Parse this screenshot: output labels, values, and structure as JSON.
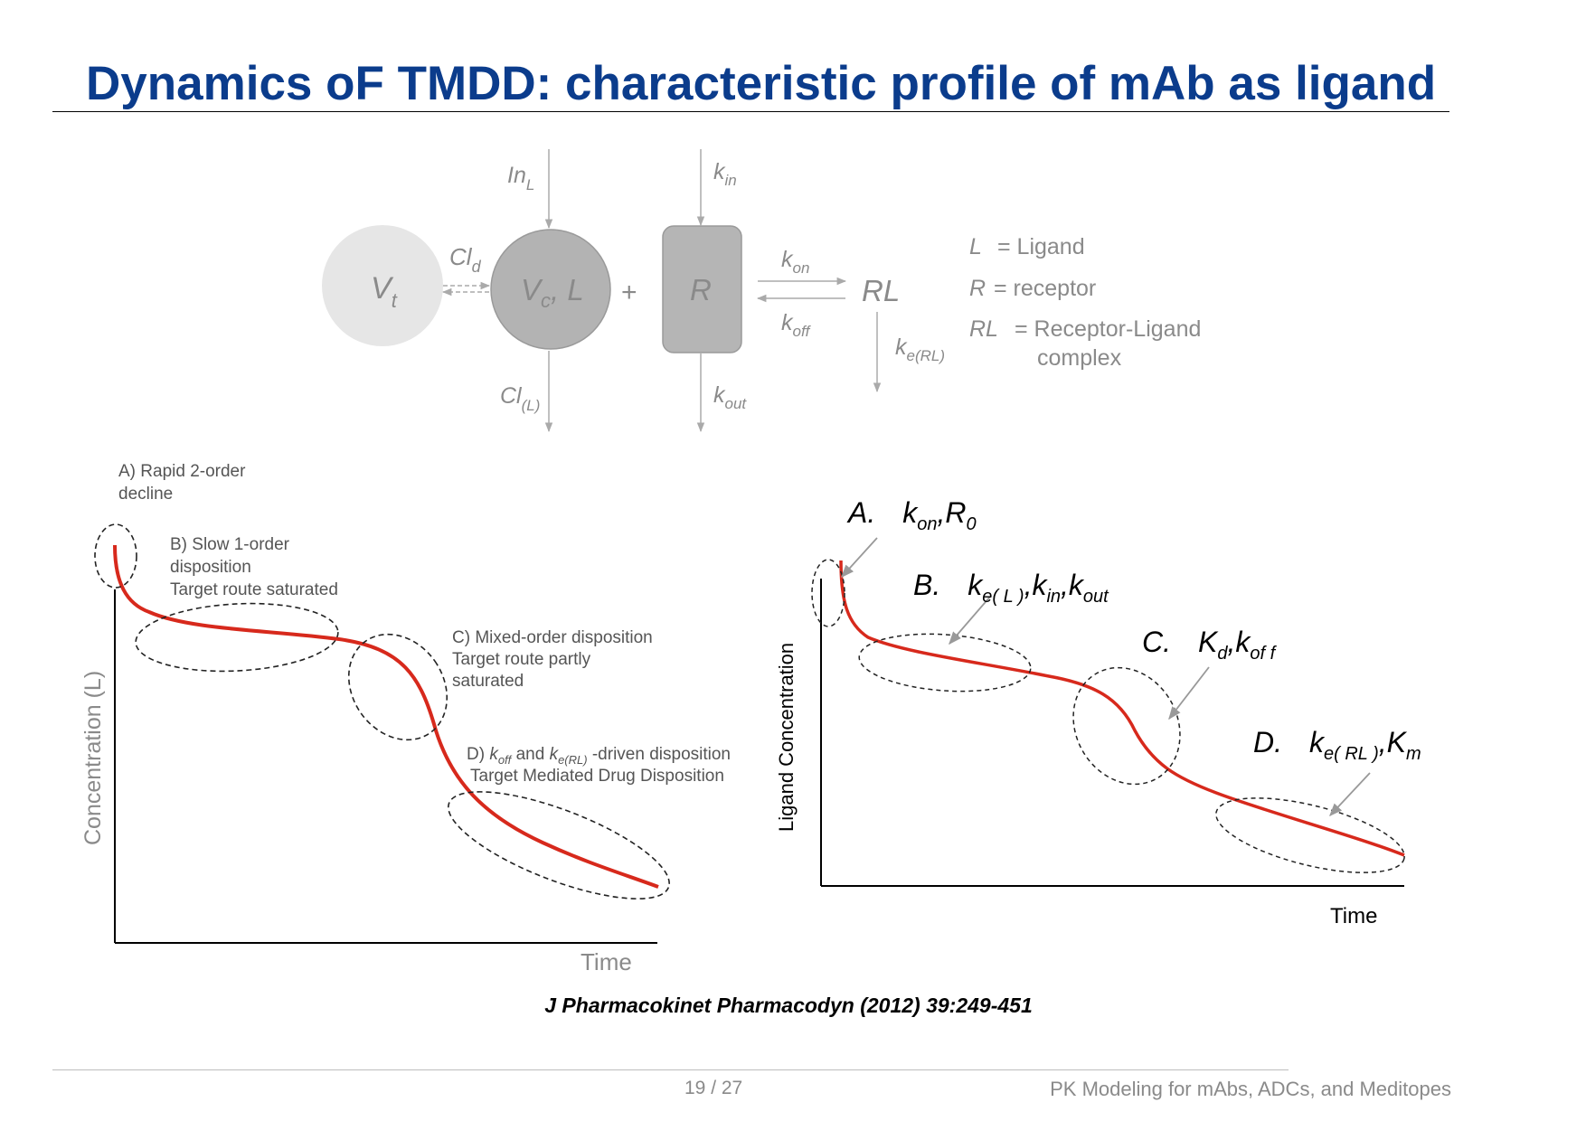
{
  "slide": {
    "title": "Dynamics oF TMDD: characteristic profile of mAb as ligand",
    "citation": "J Pharmacokinet Pharmacodyn (2012) 39:249-451",
    "footer_page": "19 / 27",
    "footer_title": "PK Modeling for mAbs, ADCs, and Meditopes"
  },
  "scheme": {
    "vt_main": "V",
    "vt_sub": "t",
    "vc_main": "V",
    "vc_sub": "c",
    "vc_suffix": ", L",
    "plus": "+",
    "r_label": "R",
    "rl_label": "RL",
    "inl_main": "In",
    "inl_sub": "L",
    "kin_main": "k",
    "kin_sub": "in",
    "cld_main": "Cl",
    "cld_sub": "d",
    "kon_main": "k",
    "kon_sub": "on",
    "koff_main": "k",
    "koff_sub": "off",
    "cll_main": "Cl",
    "cll_sub": "(L)",
    "kout_main": "k",
    "kout_sub": "out",
    "kerl_main": "k",
    "kerl_sub": "e(RL)",
    "legend": {
      "l_sym": "L",
      "l_text": "= Ligand",
      "r_sym": "R",
      "r_text": "= receptor",
      "rl_sym": "RL",
      "rl_text": "= Receptor-Ligand",
      "rl_text2": "complex"
    }
  },
  "left_plot": {
    "ylabel": "Concentration (L)",
    "xlabel": "Time",
    "a_line1": "A) Rapid 2-order",
    "a_line2": "decline",
    "b_line1": "B) Slow 1-order",
    "b_line2": "disposition",
    "b_line3": "Target route saturated",
    "c_line1": "C) Mixed-order disposition",
    "c_line2": "Target route partly",
    "c_line3": "saturated",
    "d_prefix": "D) ",
    "d_koff_main": "k",
    "d_koff_sub": "off",
    "d_and": " and ",
    "d_kerl_main": "k",
    "d_kerl_sub": "e(RL)",
    "d_suffix": " -driven disposition",
    "d_line2": "Target Mediated Drug Disposition"
  },
  "right_plot": {
    "ylabel": "Ligand Concentration",
    "xlabel": "Time",
    "a_letter": "A.",
    "a_k": "k",
    "a_ksub": "on",
    "a_rest": ",R",
    "a_rsub": "0",
    "b_letter": "B.",
    "b_k1": "k",
    "b_k1sub": "e( L )",
    "b_k2": ",k",
    "b_k2sub": "in",
    "b_k3": ",k",
    "b_k3sub": "out",
    "c_letter": "C.",
    "c_k1": "K",
    "c_k1sub": "d",
    "c_k2": ",k",
    "c_k2sub": "of f",
    "d_letter": "D.",
    "d_k1": "k",
    "d_k1sub": "e( RL )",
    "d_k2": ",K",
    "d_k2sub": "m"
  },
  "colors": {
    "title": "#0b3c8c",
    "curve": "#d7291c",
    "scheme_text": "#8a8a8a",
    "vt_fill": "#e6e6e6",
    "vc_fill": "#b3b3b3",
    "r_fill": "#b5b5b5"
  }
}
